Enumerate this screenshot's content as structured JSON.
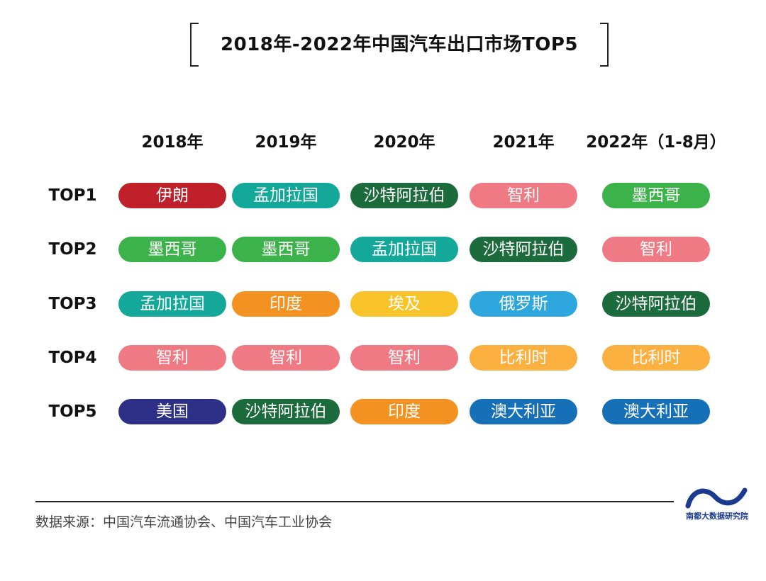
{
  "title": "2018年-2022年中国汽车出口市场TOP5",
  "source": "数据来源：中国汽车流通协会、中国汽车工业协会",
  "logo": {
    "text": "南都大数据研究院",
    "color": "#1a3a8f"
  },
  "colors": {
    "伊朗": "#c0202a",
    "孟加拉国": "#14a89a",
    "沙特阿拉伯": "#1c6b3c",
    "智利": "#f07a84",
    "墨西哥": "#3bb34a",
    "印度": "#f39220",
    "埃及": "#f9c42a",
    "俄罗斯": "#2ea7de",
    "比利时": "#fbb040",
    "美国": "#2e2f86",
    "澳大利亚": "#1670b8"
  },
  "chart_data": {
    "type": "table",
    "title": "2018年-2022年中国汽车出口市场TOP5",
    "columns": [
      "2018年",
      "2019年",
      "2020年",
      "2021年",
      "2022年（1-8月）"
    ],
    "rows": [
      {
        "label": "TOP1",
        "values": [
          "伊朗",
          "孟加拉国",
          "沙特阿拉伯",
          "智利",
          "墨西哥"
        ]
      },
      {
        "label": "TOP2",
        "values": [
          "墨西哥",
          "墨西哥",
          "孟加拉国",
          "沙特阿拉伯",
          "智利"
        ]
      },
      {
        "label": "TOP3",
        "values": [
          "孟加拉国",
          "印度",
          "埃及",
          "俄罗斯",
          "沙特阿拉伯"
        ]
      },
      {
        "label": "TOP4",
        "values": [
          "智利",
          "智利",
          "智利",
          "比利时",
          "比利时"
        ]
      },
      {
        "label": "TOP5",
        "values": [
          "美国",
          "沙特阿拉伯",
          "印度",
          "澳大利亚",
          "澳大利亚"
        ]
      }
    ]
  }
}
